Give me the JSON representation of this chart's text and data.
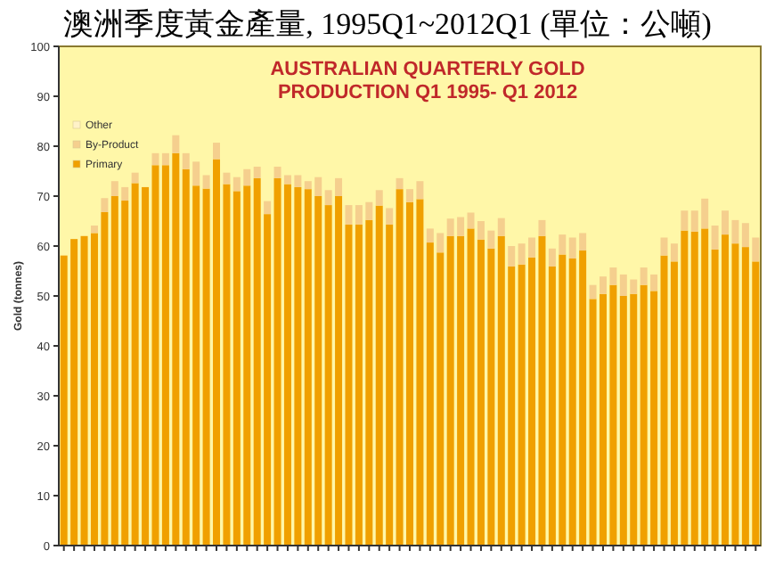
{
  "chart_data": {
    "type": "bar",
    "stacked": true,
    "title": "澳洲季度黃金產量, 1995Q1~2012Q1 (單位：公噸)",
    "subtitle": "AUSTRALIAN QUARTERLY GOLD PRODUCTION Q1 1995- Q1 2012",
    "ylabel": "Gold (tonnes)",
    "categories": [
      null,
      null,
      null,
      null,
      null,
      null,
      null,
      null,
      null,
      null,
      null,
      null,
      null,
      null,
      null,
      null,
      null,
      null,
      null,
      null,
      null,
      null,
      null,
      null,
      null,
      null,
      null,
      null,
      null,
      null,
      null,
      null,
      null,
      null,
      null,
      null,
      null,
      null,
      null,
      null,
      null,
      null,
      null,
      null,
      null,
      null,
      null,
      null,
      null,
      null,
      null,
      null,
      null,
      null,
      null,
      null,
      null,
      null,
      null,
      null,
      null,
      null,
      null,
      null,
      null,
      null,
      null,
      null,
      null
    ],
    "series": [
      {
        "name": "Primary",
        "color": "#f0a000",
        "values": [
          58.1,
          61.4,
          62,
          62.6,
          66.8,
          70,
          69.1,
          72.6,
          71.8,
          76.2,
          76.2,
          78.6,
          75.4,
          72.1,
          71.5,
          77.4,
          72.4,
          71,
          72.1,
          73.6,
          66.4,
          73.6,
          72.4,
          71.8,
          71.4,
          70,
          68.2,
          70,
          64.3,
          64.3,
          65.2,
          68.1,
          64.3,
          71.4,
          68.8,
          69.4,
          60.7,
          58.7,
          62,
          62,
          63.5,
          61.3,
          59.5,
          62,
          55.9,
          56.3,
          57.7,
          62,
          55.9,
          58.3,
          57.5,
          59.1,
          49.4,
          50.4,
          52.2,
          50,
          50.4,
          52.2,
          51,
          58.1,
          56.9,
          63.1,
          62.9,
          63.5,
          59.3,
          62.3,
          60.5,
          59.8,
          56.9
        ]
      },
      {
        "name": "By-Product",
        "color": "#f5cf8e",
        "values": [
          null,
          null,
          null,
          1.5,
          2.8,
          3,
          2.7,
          2.1,
          null,
          2.4,
          2.4,
          3.6,
          3.2,
          4.8,
          2.7,
          3.3,
          2.3,
          2.8,
          3.3,
          2.3,
          2.6,
          2.3,
          1.8,
          2.4,
          1.6,
          3.8,
          3,
          3.6,
          3.9,
          3.9,
          3.6,
          3.1,
          3.3,
          2.2,
          2.6,
          3.6,
          2.8,
          3.9,
          3.5,
          3.8,
          3.2,
          3.7,
          3.6,
          3.6,
          4.1,
          4.2,
          4,
          3.2,
          3.6,
          4,
          4.2,
          3.5,
          2.8,
          3.5,
          3.5,
          4.3,
          2.9,
          3.5,
          3.3,
          3.6,
          3.6,
          4,
          4.2,
          6,
          4.8,
          4.8,
          4.7,
          4.8,
          4.8
        ]
      },
      {
        "name": "Other",
        "color": "#fff2c8",
        "values": [
          null,
          null,
          null,
          null,
          null,
          null,
          null,
          null,
          null,
          null,
          null,
          null,
          null,
          null,
          null,
          null,
          null,
          null,
          null,
          null,
          null,
          null,
          null,
          null,
          null,
          null,
          null,
          null,
          null,
          null,
          null,
          null,
          null,
          null,
          null,
          null,
          null,
          null,
          null,
          null,
          null,
          null,
          null,
          null,
          null,
          null,
          null,
          null,
          null,
          null,
          null,
          null,
          null,
          null,
          null,
          null,
          null,
          null,
          null,
          null,
          null,
          null,
          null,
          null,
          null,
          null,
          null,
          null,
          null
        ]
      }
    ],
    "ylim": [
      0,
      100
    ],
    "yticks": [
      0,
      10,
      20,
      30,
      40,
      50,
      60,
      70,
      80,
      90,
      100
    ],
    "legend": "top left"
  }
}
